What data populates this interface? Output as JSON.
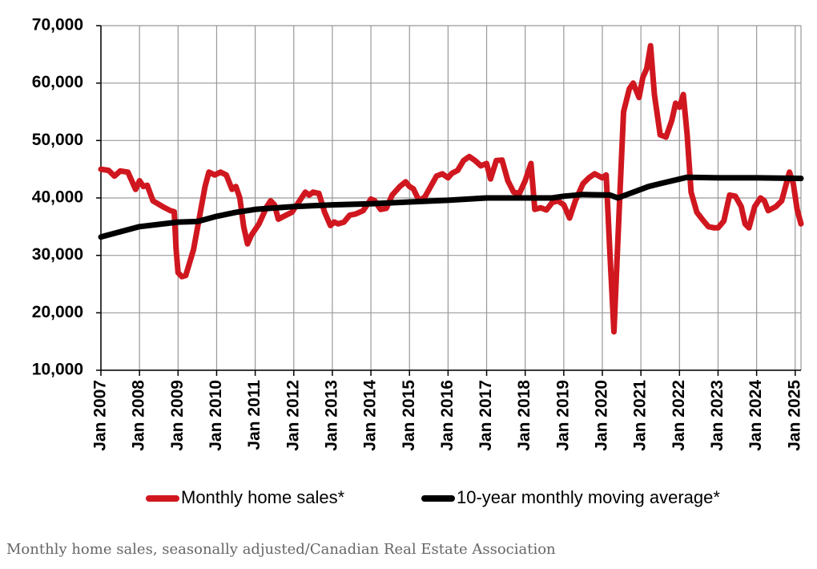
{
  "chart_data": {
    "type": "line",
    "caption": "Monthly home sales, seasonally adjusted/Canadian Real Estate Association",
    "xlim": [
      2007,
      2025.15
    ],
    "ylim": [
      10000,
      70000
    ],
    "yticks": [
      {
        "value": 10000,
        "label": "10,000"
      },
      {
        "value": 20000,
        "label": "20,000"
      },
      {
        "value": 30000,
        "label": "30,000"
      },
      {
        "value": 40000,
        "label": "40,000"
      },
      {
        "value": 50000,
        "label": "50,000"
      },
      {
        "value": 60000,
        "label": "60,000"
      },
      {
        "value": 70000,
        "label": "70,000"
      }
    ],
    "xticks": [
      {
        "value": 2007,
        "label": "Jan 2007"
      },
      {
        "value": 2008,
        "label": "Jan 2008"
      },
      {
        "value": 2009,
        "label": "Jan 2009"
      },
      {
        "value": 2010,
        "label": "Jan 2010"
      },
      {
        "value": 2011,
        "label": "Jan 2011"
      },
      {
        "value": 2012,
        "label": "Jan 2012"
      },
      {
        "value": 2013,
        "label": "Jan 2013"
      },
      {
        "value": 2014,
        "label": "Jan 2014"
      },
      {
        "value": 2015,
        "label": "Jan 2015"
      },
      {
        "value": 2016,
        "label": "Jan 2016"
      },
      {
        "value": 2017,
        "label": "Jan 2017"
      },
      {
        "value": 2018,
        "label": "Jan 2018"
      },
      {
        "value": 2019,
        "label": "Jan 2019"
      },
      {
        "value": 2020,
        "label": "Jan 2020"
      },
      {
        "value": 2021,
        "label": "Jan 2021"
      },
      {
        "value": 2022,
        "label": "Jan 2022"
      },
      {
        "value": 2023,
        "label": "Jan 2023"
      },
      {
        "value": 2024,
        "label": "Jan 2024"
      },
      {
        "value": 2025,
        "label": "Jan 2025"
      }
    ],
    "grid": true,
    "series": [
      {
        "name": "Monthly home sales*",
        "color": "#d0171f",
        "x": [
          2007.0,
          2007.2,
          2007.35,
          2007.5,
          2007.7,
          2007.9,
          2008.0,
          2008.1,
          2008.2,
          2008.35,
          2008.6,
          2008.8,
          2008.9,
          2008.95,
          2009.0,
          2009.1,
          2009.2,
          2009.4,
          2009.55,
          2009.7,
          2009.8,
          2009.95,
          2010.1,
          2010.25,
          2010.4,
          2010.5,
          2010.6,
          2010.7,
          2010.8,
          2010.9,
          2011.0,
          2011.1,
          2011.3,
          2011.4,
          2011.5,
          2011.6,
          2011.8,
          2011.95,
          2012.1,
          2012.3,
          2012.4,
          2012.5,
          2012.65,
          2012.8,
          2012.95,
          2013.05,
          2013.15,
          2013.3,
          2013.45,
          2013.6,
          2013.8,
          2013.9,
          2014.0,
          2014.1,
          2014.25,
          2014.4,
          2014.55,
          2014.75,
          2014.9,
          2015.0,
          2015.1,
          2015.25,
          2015.4,
          2015.55,
          2015.7,
          2015.85,
          2016.0,
          2016.1,
          2016.25,
          2016.4,
          2016.55,
          2016.7,
          2016.85,
          2017.0,
          2017.1,
          2017.25,
          2017.4,
          2017.55,
          2017.7,
          2017.85,
          2018.0,
          2018.15,
          2018.25,
          2018.4,
          2018.55,
          2018.7,
          2018.85,
          2019.0,
          2019.15,
          2019.3,
          2019.5,
          2019.65,
          2019.8,
          2020.0,
          2020.1,
          2020.2,
          2020.3,
          2020.45,
          2020.55,
          2020.7,
          2020.8,
          2020.95,
          2021.05,
          2021.15,
          2021.25,
          2021.35,
          2021.5,
          2021.65,
          2021.8,
          2021.9,
          2022.0,
          2022.1,
          2022.2,
          2022.3,
          2022.45,
          2022.6,
          2022.75,
          2022.9,
          2023.0,
          2023.15,
          2023.3,
          2023.45,
          2023.6,
          2023.7,
          2023.8,
          2023.95,
          2024.1,
          2024.2,
          2024.3,
          2024.5,
          2024.65,
          2024.85,
          2024.95,
          2025.05,
          2025.15
        ],
        "values": [
          45000,
          44800,
          43800,
          44700,
          44500,
          41500,
          43000,
          42000,
          42200,
          39500,
          38500,
          37800,
          37600,
          31000,
          27000,
          26300,
          26500,
          31000,
          36500,
          42000,
          44500,
          44000,
          44500,
          44000,
          41500,
          42000,
          40000,
          35000,
          32000,
          33500,
          34500,
          35500,
          38500,
          39500,
          38800,
          36300,
          37000,
          37500,
          39000,
          41000,
          40500,
          41000,
          40800,
          37500,
          35200,
          35800,
          35500,
          35800,
          37000,
          37200,
          37800,
          38800,
          39800,
          39500,
          38000,
          38200,
          40500,
          42000,
          42800,
          42000,
          41600,
          39500,
          40200,
          42000,
          43800,
          44200,
          43500,
          44300,
          44800,
          46500,
          47200,
          46500,
          45600,
          46000,
          43300,
          46500,
          46600,
          43000,
          41000,
          40800,
          43000,
          46000,
          38000,
          38300,
          37900,
          39200,
          39500,
          38800,
          36500,
          39500,
          42500,
          43500,
          44200,
          43500,
          44000,
          30000,
          16700,
          40000,
          55000,
          59000,
          60000,
          57500,
          61000,
          62500,
          66500,
          58000,
          51000,
          50600,
          53500,
          56500,
          55800,
          58000,
          51000,
          41000,
          37500,
          36200,
          35000,
          34800,
          34800,
          36000,
          40500,
          40300,
          38500,
          35500,
          34800,
          38500,
          40000,
          39500,
          37800,
          38500,
          39500,
          44500,
          42500,
          38000,
          35500
        ]
      },
      {
        "name": "10-year monthly moving average*",
        "color": "#000000",
        "x": [
          2007.0,
          2008.0,
          2009.0,
          2009.5,
          2010.0,
          2010.5,
          2011.0,
          2012.0,
          2013.0,
          2014.0,
          2015.0,
          2016.0,
          2017.0,
          2018.0,
          2018.7,
          2019.0,
          2019.5,
          2020.2,
          2020.4,
          2021.2,
          2021.5,
          2022.2,
          2023.0,
          2024.0,
          2025.15
        ],
        "values": [
          33200,
          35000,
          35800,
          35900,
          36800,
          37500,
          38000,
          38500,
          38800,
          39000,
          39300,
          39600,
          40000,
          40000,
          40000,
          40300,
          40600,
          40500,
          40000,
          42000,
          42500,
          43600,
          43500,
          43500,
          43400
        ]
      }
    ]
  }
}
